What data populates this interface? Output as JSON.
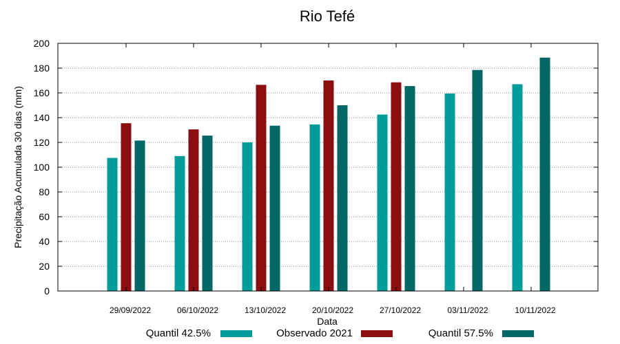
{
  "chart_data": {
    "type": "bar",
    "title": "Rio Tefé",
    "xlabel": "Data",
    "ylabel": "Precipitação Acumulada 30 dias (mm)",
    "ylim": [
      0,
      200
    ],
    "yticks": [
      0,
      20,
      40,
      60,
      80,
      100,
      120,
      140,
      160,
      180,
      200
    ],
    "grid": true,
    "legend_position": "bottom",
    "categories": [
      "29/09/2022",
      "06/10/2022",
      "13/10/2022",
      "20/10/2022",
      "27/10/2022",
      "03/11/2022",
      "10/11/2022"
    ],
    "series": [
      {
        "name": "Quantil 42.5%",
        "color": "#009c99",
        "values": [
          107.5,
          109,
          120,
          134.5,
          142.5,
          159.5,
          167
        ]
      },
      {
        "name": "Observado 2021",
        "color": "#8b0e10",
        "values": [
          135.5,
          130.5,
          166.5,
          170,
          168.5,
          null,
          null
        ]
      },
      {
        "name": "Quantil 57.5%",
        "color": "#006666",
        "values": [
          121.5,
          125.5,
          133.5,
          150,
          165.5,
          178.5,
          188.5
        ]
      }
    ]
  }
}
